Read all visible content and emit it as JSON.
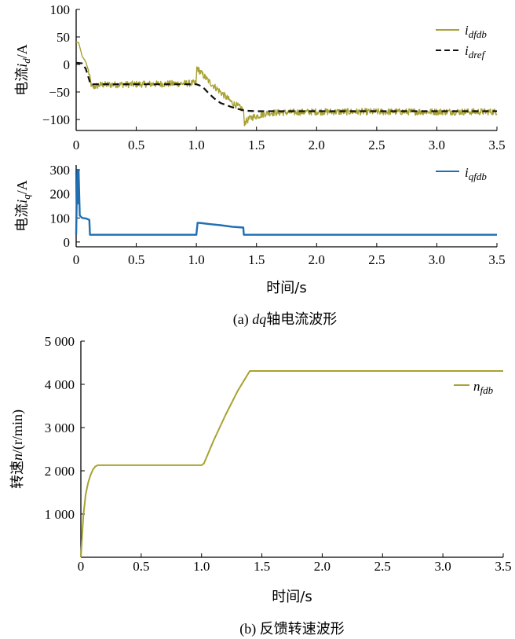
{
  "chart_data": [
    {
      "type": "line",
      "panel": "id",
      "ylabel_prefix": "电流",
      "ylabel_var": "i",
      "ylabel_sub": "d",
      "ylabel_unit": "/A",
      "xlim": [
        0,
        3.5
      ],
      "ylim": [
        -120,
        100
      ],
      "xticks": [
        "0",
        "0.5",
        "1.0",
        "1.5",
        "2.0",
        "2.5",
        "3.0",
        "3.5"
      ],
      "yticks": [
        "100",
        "50",
        "0",
        "−50",
        "−100"
      ],
      "legend_placement": "top-right",
      "series": [
        {
          "name_main": "i",
          "name_sub": "dfdb",
          "color": "#a7a232",
          "style": "solid-noisy",
          "noise_amplitude": 6,
          "x": [
            0,
            0.02,
            0.05,
            0.08,
            0.1,
            0.13,
            0.2,
            0.5,
            0.8,
            0.999,
            1.001,
            1.05,
            1.1,
            1.2,
            1.3,
            1.39,
            1.4,
            1.45,
            1.6,
            2.0,
            3.5
          ],
          "values": [
            40,
            40,
            15,
            5,
            -10,
            -42,
            -37,
            -36,
            -35,
            -34,
            -5,
            -18,
            -30,
            -50,
            -70,
            -82,
            -106,
            -97,
            -88,
            -86,
            -86
          ]
        },
        {
          "name_main": "i",
          "name_sub": "dref",
          "color": "#111111",
          "style": "dashed",
          "x": [
            0,
            0.05,
            0.08,
            0.12,
            0.2,
            1.0,
            1.05,
            1.1,
            1.15,
            1.2,
            1.3,
            1.4,
            1.5,
            3.5
          ],
          "values": [
            3,
            2,
            -8,
            -36,
            -36,
            -36,
            -40,
            -52,
            -62,
            -70,
            -78,
            -84,
            -85,
            -85
          ]
        }
      ]
    },
    {
      "type": "line",
      "panel": "iq",
      "ylabel_prefix": "电流",
      "ylabel_var": "i",
      "ylabel_sub": "q",
      "ylabel_unit": "/A",
      "xlabel": "时间/s",
      "xlim": [
        0,
        3.5
      ],
      "ylim": [
        -20,
        320
      ],
      "xticks": [
        "0",
        "0.5",
        "1.0",
        "1.5",
        "2.0",
        "2.5",
        "3.0",
        "3.5"
      ],
      "yticks": [
        "300",
        "200",
        "100",
        "0"
      ],
      "legend_placement": "top-right",
      "series": [
        {
          "name_main": "i",
          "name_sub": "qfdb",
          "color": "#1f6fb2",
          "x": [
            0,
            0.01,
            0.015,
            0.02,
            0.03,
            0.05,
            0.08,
            0.11,
            0.115,
            0.2,
            0.999,
            1.0,
            1.01,
            1.05,
            1.1,
            1.2,
            1.3,
            1.39,
            1.395,
            1.4,
            2.0,
            3.5
          ],
          "values": [
            30,
            300,
            160,
            300,
            110,
            100,
            98,
            92,
            30,
            30,
            30,
            30,
            80,
            78,
            75,
            70,
            63,
            60,
            30,
            30,
            30,
            30
          ]
        }
      ],
      "caption_prefix": "(a) ",
      "caption_var": "dq",
      "caption_rest": "轴电流波形"
    },
    {
      "type": "line",
      "panel": "speed",
      "ylabel_prefix": "转速",
      "ylabel_var": "n",
      "ylabel_unit": "/(r/min)",
      "xlabel": "时间/s",
      "xlim": [
        0,
        3.5
      ],
      "ylim": [
        0,
        5000
      ],
      "xticks": [
        "0",
        "0.5",
        "1.0",
        "1.5",
        "2.0",
        "2.5",
        "3.0",
        "3.5"
      ],
      "yticks": [
        "5 000",
        "4 000",
        "3 000",
        "2 000",
        "1 000"
      ],
      "legend_placement": "top-right",
      "series": [
        {
          "name_main": "n",
          "name_sub": "fdb",
          "color": "#a7a232",
          "x": [
            0,
            0.02,
            0.04,
            0.06,
            0.08,
            0.1,
            0.12,
            0.14,
            0.2,
            0.6,
            1.0,
            1.02,
            1.1,
            1.2,
            1.3,
            1.4,
            2.0,
            3.5
          ],
          "values": [
            0,
            950,
            1450,
            1720,
            1900,
            2030,
            2100,
            2130,
            2130,
            2130,
            2130,
            2170,
            2700,
            3300,
            3850,
            4310,
            4310,
            4310
          ]
        }
      ],
      "caption_prefix": "(b) ",
      "caption_rest": "反馈转速波形"
    }
  ]
}
